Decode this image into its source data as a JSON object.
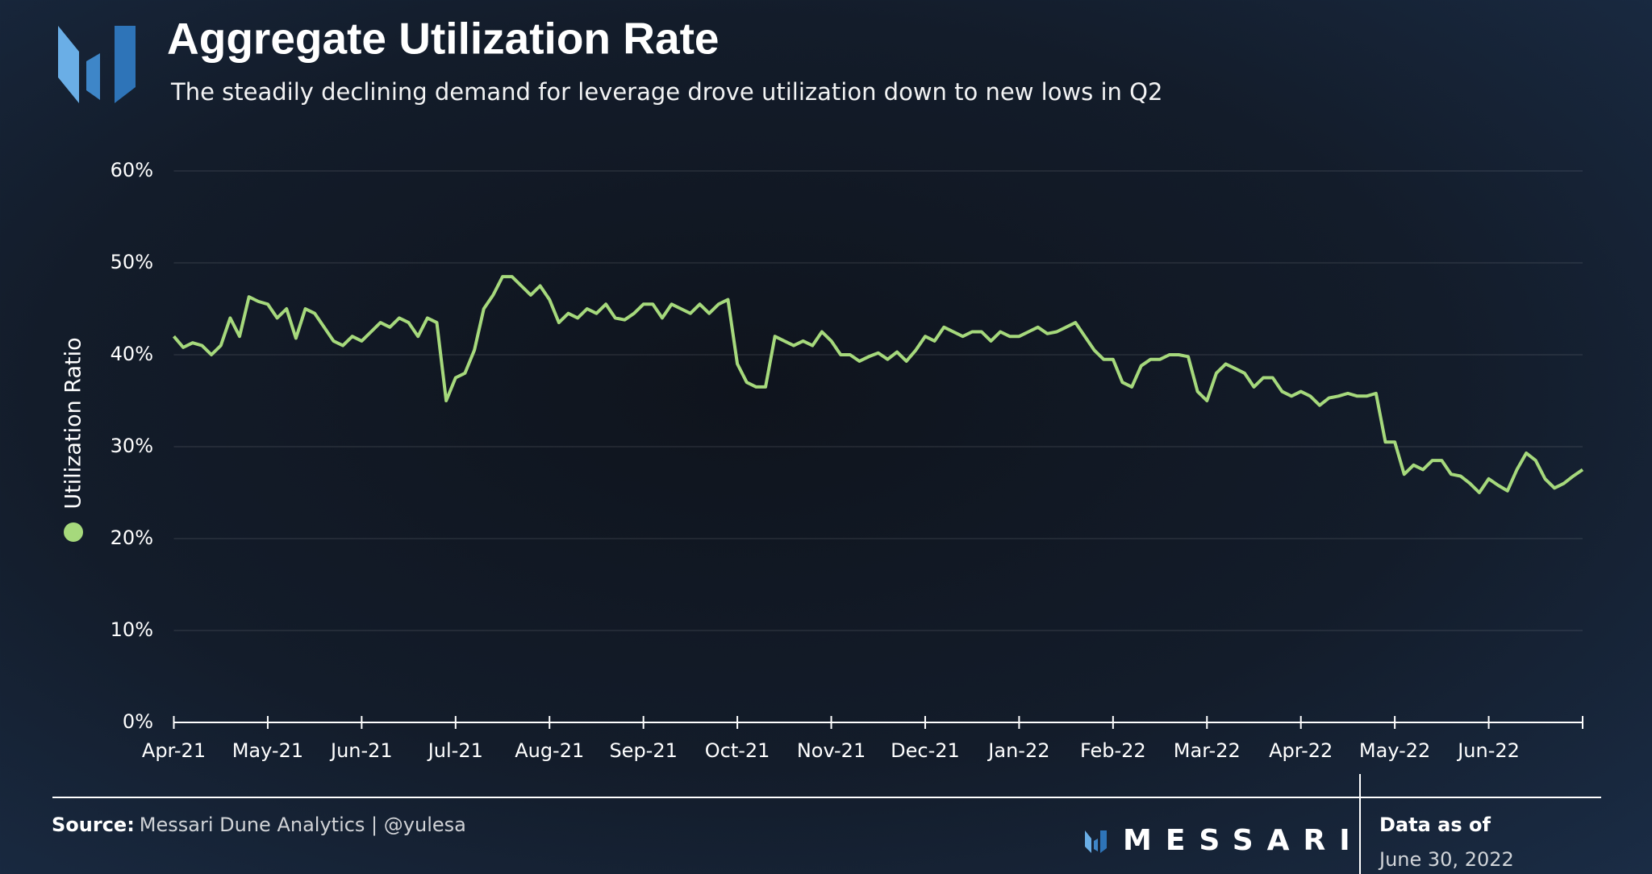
{
  "chart_data": {
    "type": "line",
    "title": "Aggregate Utilization Rate",
    "subtitle": "The steadily declining demand for leverage drove utilization down to new lows in Q2",
    "categories": [
      "Apr-21",
      null,
      null,
      null,
      null,
      null,
      null,
      null,
      null,
      null,
      "May-21",
      null,
      null,
      null,
      null,
      null,
      null,
      null,
      null,
      null,
      "Jun-21",
      null,
      null,
      null,
      null,
      null,
      null,
      null,
      null,
      null,
      "Jul-21",
      null,
      null,
      null,
      null,
      null,
      null,
      null,
      null,
      null,
      "Aug-21",
      null,
      null,
      null,
      null,
      null,
      null,
      null,
      null,
      null,
      "Sep-21",
      null,
      null,
      null,
      null,
      null,
      null,
      null,
      null,
      null,
      "Oct-21",
      null,
      null,
      null,
      null,
      null,
      null,
      null,
      null,
      null,
      "Nov-21",
      null,
      null,
      null,
      null,
      null,
      null,
      null,
      null,
      null,
      "Dec-21",
      null,
      null,
      null,
      null,
      null,
      null,
      null,
      null,
      null,
      "Jan-22",
      null,
      null,
      null,
      null,
      null,
      null,
      null,
      null,
      null,
      "Feb-22",
      null,
      null,
      null,
      null,
      null,
      null,
      null,
      null,
      null,
      "Mar-22",
      null,
      null,
      null,
      null,
      null,
      null,
      null,
      null,
      null,
      "Apr-22",
      null,
      null,
      null,
      null,
      null,
      null,
      null,
      null,
      null,
      "May-22",
      null,
      null,
      null,
      null,
      null,
      null,
      null,
      null,
      null,
      "Jun-22",
      null,
      null,
      null,
      null,
      null,
      null,
      null,
      null,
      null,
      null
    ],
    "series": [
      {
        "name": "Utilization Ratio",
        "color": "#a6d97c",
        "values": [
          42,
          40.8,
          41.3,
          41,
          40,
          41,
          44,
          42,
          46.3,
          45.8,
          45.5,
          44,
          45,
          41.8,
          45,
          44.5,
          43,
          41.5,
          41,
          42,
          41.5,
          42.5,
          43.5,
          43,
          44,
          43.5,
          42,
          44,
          43.5,
          35,
          37.5,
          38,
          40.5,
          45,
          46.5,
          48.5,
          48.5,
          47.5,
          46.5,
          47.5,
          46,
          43.5,
          44.5,
          44,
          45,
          44.5,
          45.5,
          44,
          43.8,
          44.5,
          45.5,
          45.5,
          44,
          45.5,
          45,
          44.5,
          45.5,
          44.5,
          45.5,
          46,
          39,
          37,
          36.5,
          36.5,
          42,
          41.5,
          41,
          41.5,
          41,
          42.5,
          41.5,
          40,
          40,
          39.3,
          39.8,
          40.2,
          39.5,
          40.3,
          39.3,
          40.5,
          42,
          41.5,
          43,
          42.5,
          42,
          42.5,
          42.5,
          41.5,
          42.5,
          42,
          42,
          42.5,
          43,
          42.3,
          42.5,
          43,
          43.5,
          42,
          40.5,
          39.5,
          39.5,
          37,
          36.5,
          38.8,
          39.5,
          39.5,
          40,
          40,
          39.8,
          36,
          35,
          38,
          39,
          38.5,
          38,
          36.5,
          37.5,
          37.5,
          36,
          35.5,
          36,
          35.5,
          34.5,
          35.3,
          35.5,
          35.8,
          35.5,
          35.5,
          35.8,
          30.5,
          30.5,
          27,
          28,
          27.5,
          28.5,
          28.5,
          27,
          26.8,
          26,
          25,
          26.5,
          25.8,
          25.2,
          27.5,
          29.3,
          28.5,
          26.5,
          25.5,
          26,
          26.8,
          27.5
        ]
      }
    ],
    "ylim": [
      0,
      60
    ],
    "yticks": [
      {
        "value": 0,
        "label": "0%"
      },
      {
        "value": 10,
        "label": "10%"
      },
      {
        "value": 20,
        "label": "20%"
      },
      {
        "value": 30,
        "label": "30%"
      },
      {
        "value": 40,
        "label": "40%"
      },
      {
        "value": 50,
        "label": "50%"
      },
      {
        "value": 60,
        "label": "60%"
      }
    ],
    "grid": true
  },
  "footer": {
    "source_label": "Source:",
    "source": "Messari Dune Analytics | @yulesa",
    "brand": "MESSARI",
    "date_label": "Data as of",
    "date": "June 30, 2022"
  }
}
